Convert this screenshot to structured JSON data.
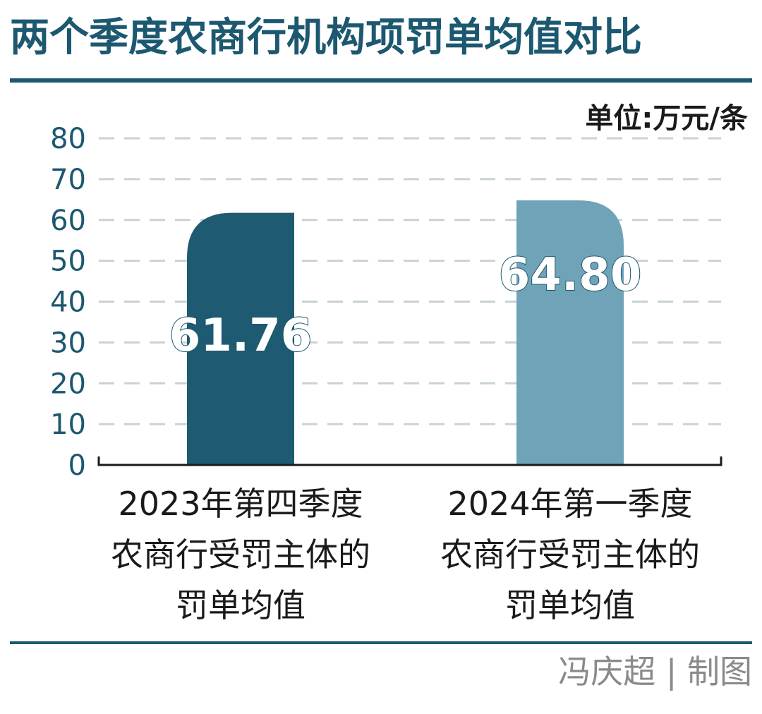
{
  "chart_data": {
    "type": "bar",
    "title": "两个季度农商行机构项罚单均值对比",
    "unit": "单位:万元/条",
    "categories": [
      "2023年第四季度\n农商行受罚主体的\n罚单均值",
      "2024年第一季度\n农商行受罚主体的\n罚单均值"
    ],
    "values": [
      61.76,
      64.8
    ],
    "value_labels": [
      "61.76",
      "64.80"
    ],
    "ylim": [
      0,
      80
    ],
    "yticks": [
      "0",
      "10",
      "20",
      "30",
      "40",
      "50",
      "60",
      "70",
      "80"
    ],
    "grid": true,
    "colors": [
      "#1e5a72",
      "#6fa3b8"
    ]
  },
  "credit": "冯庆超 | 制图"
}
